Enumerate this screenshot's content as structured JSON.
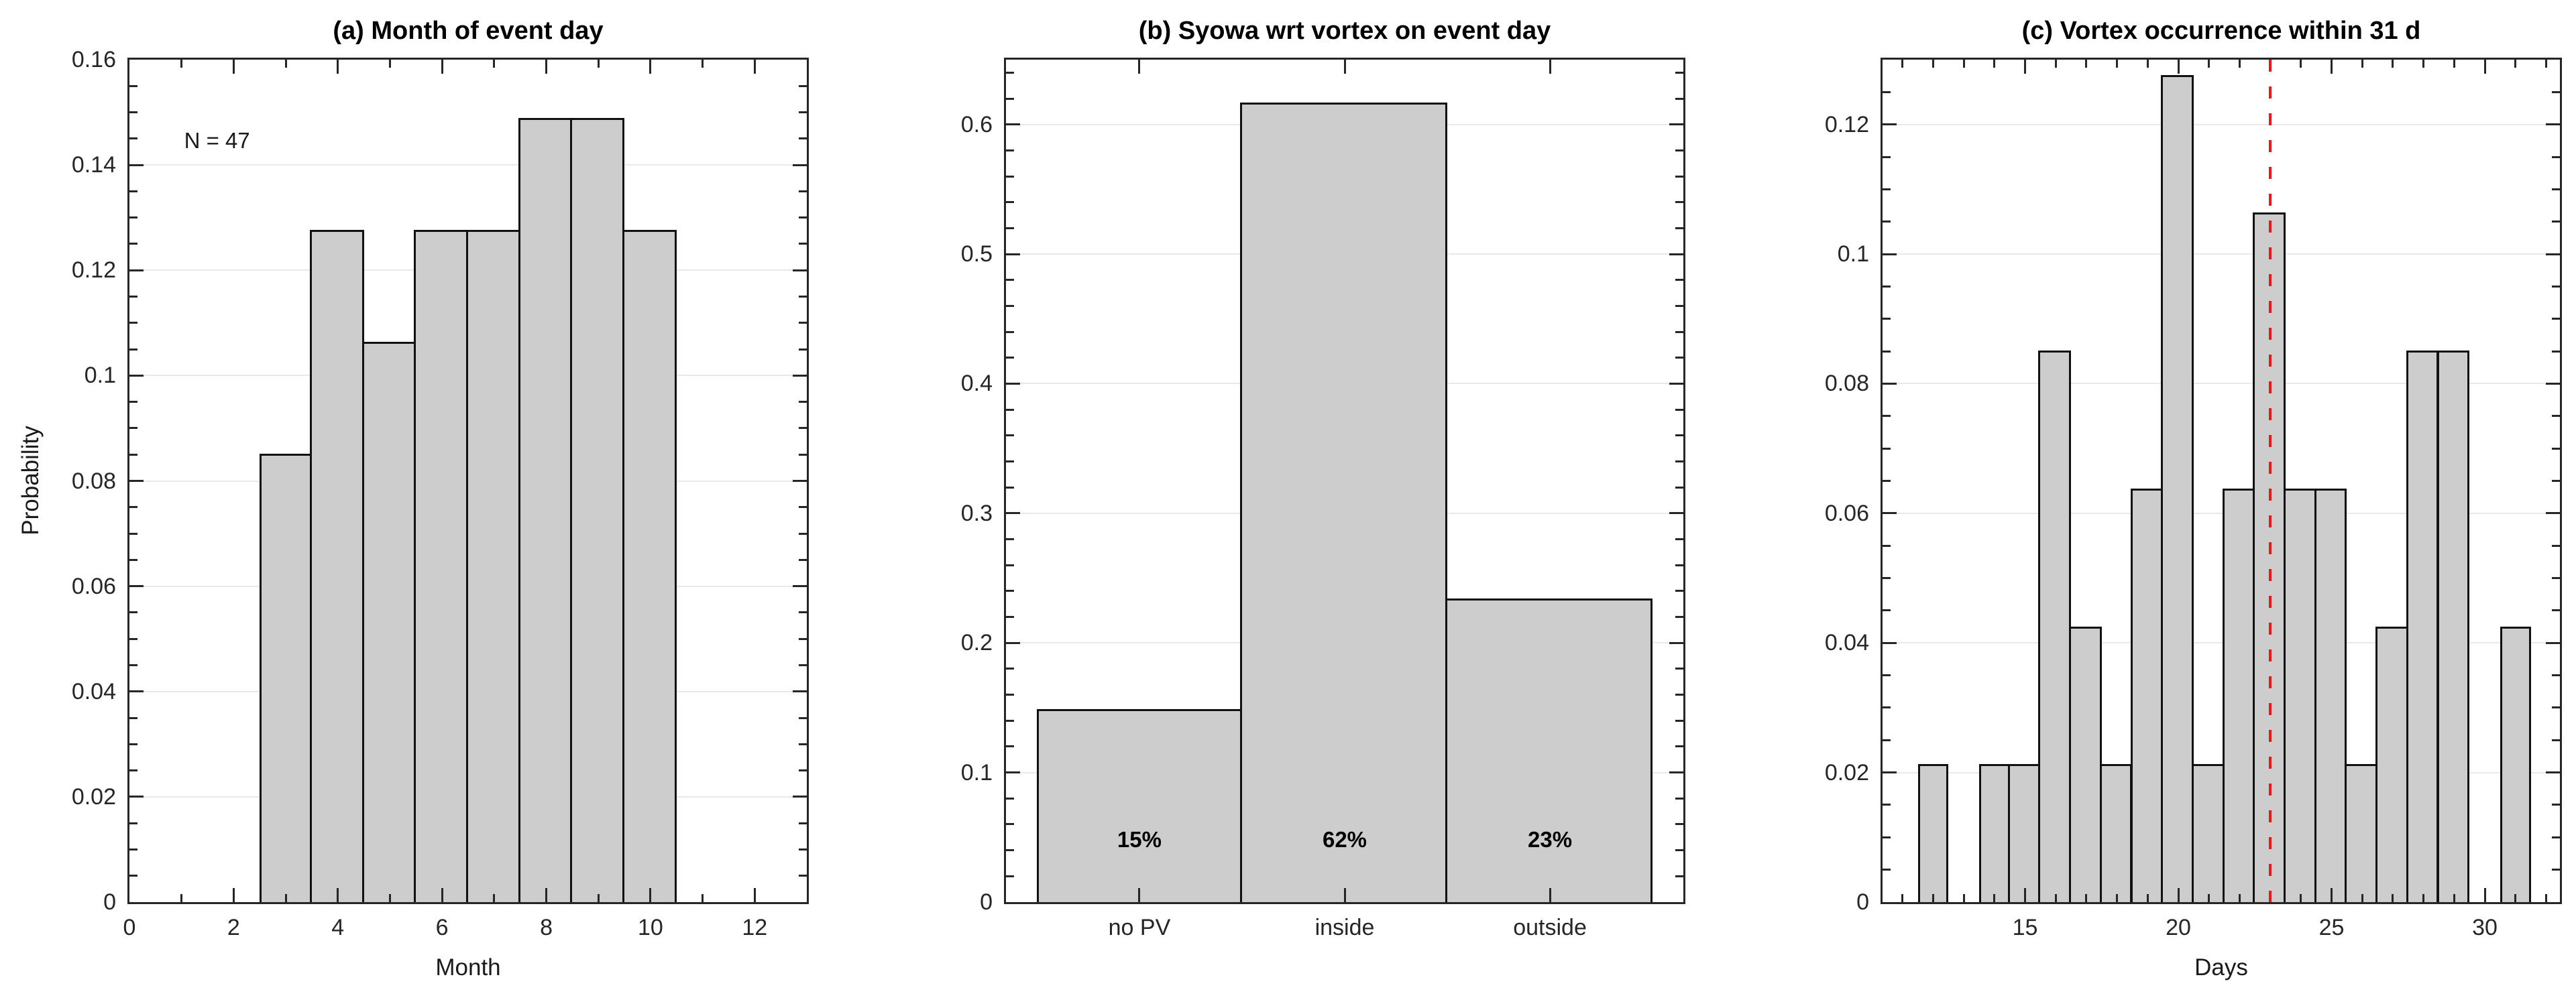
{
  "figure_note": "Three-panel histogram figure (MATLAB style)",
  "style": {
    "bar_fill": "#cdcdcd",
    "bar_edge": "#111111",
    "axis_color": "#262626",
    "grid_color": "#e9e9e9",
    "title_color": "#000000",
    "vline_color": "#e31b1b",
    "background": "#ffffff"
  },
  "chart_data": [
    {
      "panel": "a",
      "type": "bar",
      "title": "(a) Month of event day",
      "xlabel": "Month",
      "ylabel": "Probability",
      "annotation": {
        "text": "N = 47",
        "x": 1.05,
        "y": 0.1445
      },
      "xlim": [
        0,
        13
      ],
      "ylim": [
        0,
        0.16
      ],
      "bin_width": 1,
      "grid": "y-major",
      "x_ticks": {
        "values": [
          0,
          2,
          4,
          6,
          8,
          10,
          12
        ],
        "labels": [
          "0",
          "2",
          "4",
          "6",
          "8",
          "10",
          "12"
        ],
        "minor_step": 1
      },
      "y_ticks": {
        "values": [
          0,
          0.02,
          0.04,
          0.06,
          0.08,
          0.1,
          0.12,
          0.14,
          0.16
        ],
        "labels": [
          "0",
          "0.02",
          "0.04",
          "0.06",
          "0.08",
          "0.1",
          "0.12",
          "0.14",
          "0.16"
        ],
        "minor_step": 0.005
      },
      "x": [
        3,
        4,
        5,
        6,
        7,
        8,
        9,
        10
      ],
      "values": [
        0.08511,
        0.12766,
        0.10638,
        0.12766,
        0.12766,
        0.14894,
        0.14894,
        0.12766
      ]
    },
    {
      "panel": "b",
      "type": "bar",
      "title": "(b) Syowa wrt vortex on event day",
      "xlabel": "",
      "ylabel": "",
      "categories": [
        "no PV",
        "inside",
        "outside"
      ],
      "centers": [
        1,
        2,
        3
      ],
      "values": [
        0.14894,
        0.61702,
        0.23404
      ],
      "bar_labels": {
        "texts": [
          "15%",
          "62%",
          "23%"
        ],
        "y": 0.048
      },
      "xlim": [
        0.35,
        3.65
      ],
      "ylim": [
        0,
        0.65
      ],
      "bin_width": 1,
      "grid": "y-major",
      "y_ticks": {
        "values": [
          0,
          0.1,
          0.2,
          0.3,
          0.4,
          0.5,
          0.6
        ],
        "labels": [
          "0",
          "0.1",
          "0.2",
          "0.3",
          "0.4",
          "0.5",
          "0.6"
        ],
        "minor_step": 0.02
      }
    },
    {
      "panel": "c",
      "type": "bar",
      "title": "(c) Vortex occurrence within 31 d",
      "xlabel": "Days",
      "ylabel": "",
      "xlim": [
        10.35,
        32.45
      ],
      "ylim": [
        0,
        0.13
      ],
      "bin_width": 1,
      "grid": "y-major",
      "x_ticks": {
        "values": [
          15,
          20,
          25,
          30
        ],
        "labels": [
          "15",
          "20",
          "25",
          "30"
        ],
        "minor_step": 1
      },
      "y_ticks": {
        "values": [
          0,
          0.02,
          0.04,
          0.06,
          0.08,
          0.1,
          0.12
        ],
        "labels": [
          "0",
          "0.02",
          "0.04",
          "0.06",
          "0.08",
          "0.1",
          "0.12"
        ],
        "minor_step": 0.005
      },
      "x": [
        12,
        13,
        14,
        15,
        16,
        17,
        18,
        19,
        20,
        21,
        22,
        23,
        24,
        25,
        26,
        27,
        28,
        29,
        30,
        31
      ],
      "values": [
        0.02128,
        0,
        0.02128,
        0.02128,
        0.08511,
        0.04255,
        0.02128,
        0.06383,
        0.12766,
        0.02128,
        0.06383,
        0.10638,
        0.06383,
        0.06383,
        0.02128,
        0.04255,
        0.08511,
        0.08511,
        0,
        0.04255
      ],
      "vline": {
        "x": 23,
        "style": "dashed"
      }
    }
  ]
}
